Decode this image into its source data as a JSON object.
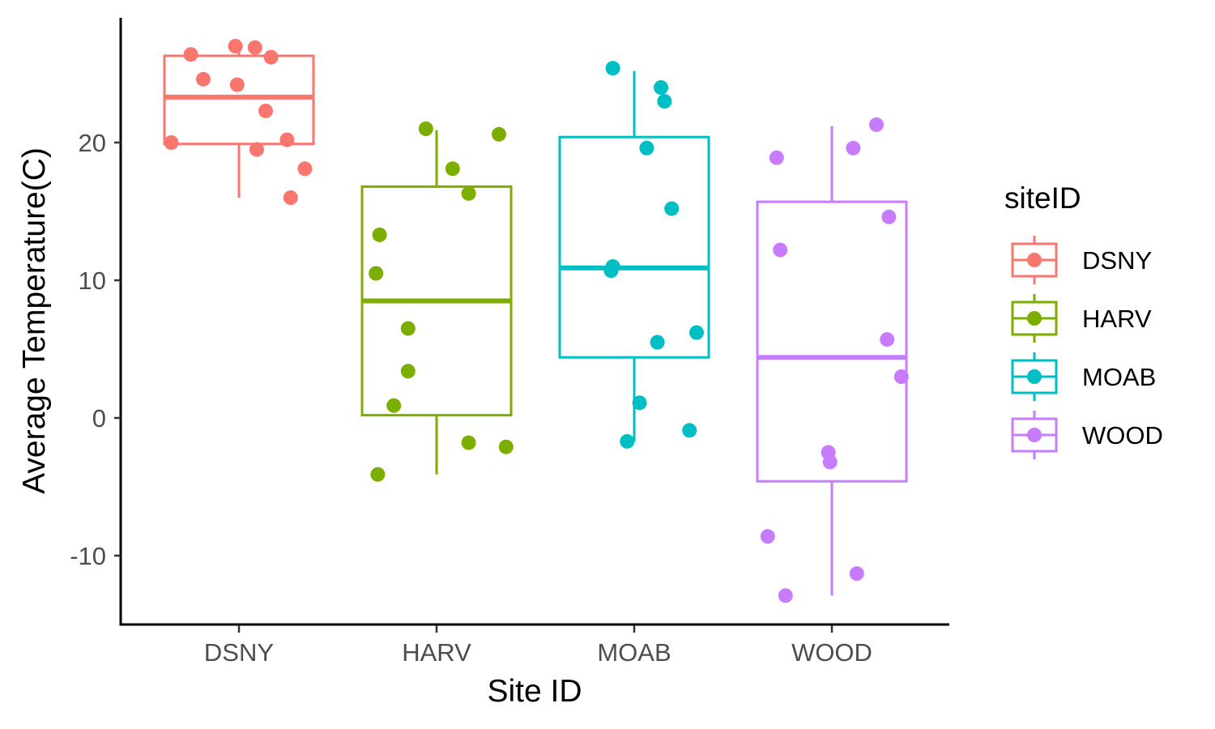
{
  "chart_data": {
    "type": "boxplot",
    "xlabel": "Site ID",
    "ylabel": "Average Temperature(C)",
    "categories": [
      "DSNY",
      "HARV",
      "MOAB",
      "WOOD"
    ],
    "ylim": [
      -15,
      29
    ],
    "yticks": [
      -10,
      0,
      10,
      20
    ],
    "grid": false,
    "legend": {
      "title": "siteID",
      "position": "right",
      "entries": [
        "DSNY",
        "HARV",
        "MOAB",
        "WOOD"
      ]
    },
    "colors": {
      "DSNY": "#F8766D",
      "HARV": "#7CAE00",
      "MOAB": "#00BFC4",
      "WOOD": "#C77CFF"
    },
    "series": [
      {
        "name": "DSNY",
        "box": {
          "whisker_low": 16.0,
          "q1": 19.9,
          "median": 23.3,
          "q3": 26.3,
          "whisker_high": 27.0
        },
        "points": [
          {
            "x": -0.38,
            "y": 20.0
          },
          {
            "x": -0.27,
            "y": 26.4
          },
          {
            "x": -0.2,
            "y": 24.6
          },
          {
            "x": -0.02,
            "y": 27.0
          },
          {
            "x": -0.01,
            "y": 24.2
          },
          {
            "x": 0.1,
            "y": 19.5
          },
          {
            "x": 0.09,
            "y": 26.9
          },
          {
            "x": 0.15,
            "y": 22.3
          },
          {
            "x": 0.18,
            "y": 26.2
          },
          {
            "x": 0.27,
            "y": 20.2
          },
          {
            "x": 0.29,
            "y": 16.0
          },
          {
            "x": 0.37,
            "y": 18.1
          }
        ]
      },
      {
        "name": "HARV",
        "box": {
          "whisker_low": -4.1,
          "q1": 0.2,
          "median": 8.5,
          "q3": 16.8,
          "whisker_high": 20.9
        },
        "points": [
          {
            "x": -0.34,
            "y": 10.5
          },
          {
            "x": -0.32,
            "y": 13.3
          },
          {
            "x": -0.33,
            "y": -4.1
          },
          {
            "x": -0.16,
            "y": 6.5
          },
          {
            "x": -0.16,
            "y": 3.4
          },
          {
            "x": -0.24,
            "y": 0.9
          },
          {
            "x": -0.06,
            "y": 21.0
          },
          {
            "x": 0.09,
            "y": 18.1
          },
          {
            "x": 0.18,
            "y": 16.3
          },
          {
            "x": 0.18,
            "y": -1.8
          },
          {
            "x": 0.35,
            "y": 20.6
          },
          {
            "x": 0.39,
            "y": -2.1
          }
        ]
      },
      {
        "name": "MOAB",
        "box": {
          "whisker_low": -1.7,
          "q1": 4.4,
          "median": 10.9,
          "q3": 20.4,
          "whisker_high": 25.2
        },
        "points": [
          {
            "x": -0.12,
            "y": 25.4
          },
          {
            "x": 0.15,
            "y": 24.0
          },
          {
            "x": 0.17,
            "y": 23.0
          },
          {
            "x": 0.07,
            "y": 19.6
          },
          {
            "x": 0.21,
            "y": 15.2
          },
          {
            "x": -0.12,
            "y": 11.0
          },
          {
            "x": -0.13,
            "y": 10.7
          },
          {
            "x": 0.13,
            "y": 5.5
          },
          {
            "x": 0.35,
            "y": 6.2
          },
          {
            "x": 0.03,
            "y": 1.1
          },
          {
            "x": -0.04,
            "y": -1.7
          },
          {
            "x": 0.31,
            "y": -0.9
          }
        ]
      },
      {
        "name": "WOOD",
        "box": {
          "whisker_low": -12.9,
          "q1": -4.6,
          "median": 4.4,
          "q3": 15.7,
          "whisker_high": 21.2
        },
        "points": [
          {
            "x": -0.31,
            "y": 18.9
          },
          {
            "x": 0.12,
            "y": 19.6
          },
          {
            "x": 0.25,
            "y": 21.3
          },
          {
            "x": -0.29,
            "y": 12.2
          },
          {
            "x": 0.32,
            "y": 14.6
          },
          {
            "x": 0.31,
            "y": 5.7
          },
          {
            "x": 0.39,
            "y": 3.0
          },
          {
            "x": -0.02,
            "y": -2.5
          },
          {
            "x": -0.01,
            "y": -3.2
          },
          {
            "x": -0.36,
            "y": -8.6
          },
          {
            "x": 0.14,
            "y": -11.3
          },
          {
            "x": -0.26,
            "y": -12.9
          }
        ]
      }
    ]
  }
}
